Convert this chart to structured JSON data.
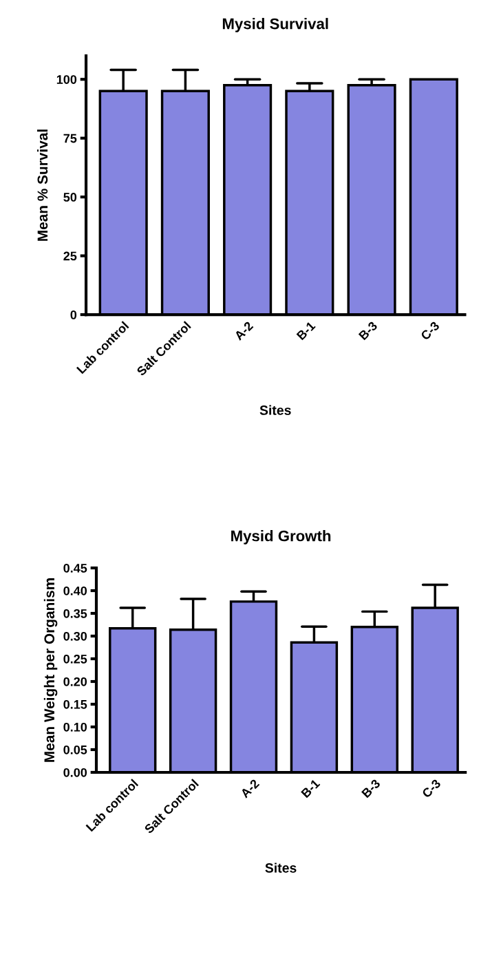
{
  "chart_data": [
    {
      "type": "bar",
      "title": "Mysid Survival",
      "xlabel": "Sites",
      "ylabel": "Mean % Survival",
      "categories": [
        "Lab control",
        "Salt Control",
        "A-2",
        "B-1",
        "B-3",
        "C-3"
      ],
      "values": [
        95,
        95,
        97.5,
        95,
        97.5,
        100
      ],
      "color": "#8585e0",
      "errors": [
        [
          95,
          104
        ],
        [
          95,
          104
        ],
        [
          97.5,
          100
        ],
        [
          95,
          98.3
        ],
        [
          97.5,
          100
        ],
        null
      ],
      "ylim": [
        0,
        110
      ],
      "yticks": [
        0,
        25,
        50,
        75,
        100
      ],
      "grid": false
    },
    {
      "type": "bar",
      "title": "Mysid Growth",
      "xlabel": "Sites",
      "ylabel": "Mean Weight per Organism",
      "categories": [
        "Lab control",
        "Salt Control",
        "A-2",
        "B-1",
        "B-3",
        "C-3"
      ],
      "values": [
        0.317,
        0.314,
        0.376,
        0.286,
        0.32,
        0.362
      ],
      "color": "#8585e0",
      "errors": [
        [
          0.317,
          0.362
        ],
        [
          0.314,
          0.382
        ],
        [
          0.376,
          0.398
        ],
        [
          0.286,
          0.321
        ],
        [
          0.32,
          0.354
        ],
        [
          0.362,
          0.413
        ]
      ],
      "ylim": [
        0,
        0.45
      ],
      "yticks": [
        {
          "value": 0,
          "label": "0.00"
        },
        {
          "value": 0.05,
          "label": "0.05"
        },
        {
          "value": 0.1,
          "label": "0.10"
        },
        {
          "value": 0.15,
          "label": "0.15"
        },
        {
          "value": 0.2,
          "label": "0.20"
        },
        {
          "value": 0.25,
          "label": "0.25"
        },
        {
          "value": 0.3,
          "label": "0.30"
        },
        {
          "value": 0.35,
          "label": "0.35"
        },
        {
          "value": 0.4,
          "label": "0.40"
        },
        {
          "value": 0.45,
          "label": "0.45"
        }
      ],
      "grid": false
    }
  ]
}
